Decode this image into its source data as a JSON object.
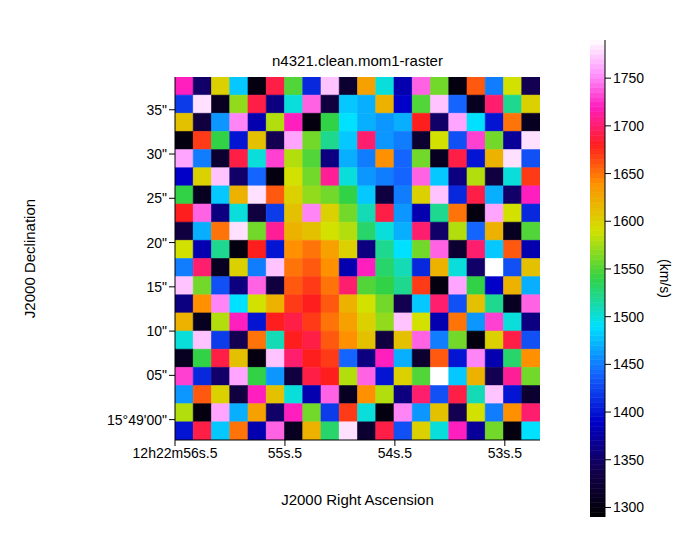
{
  "chart_data": {
    "type": "heatmap",
    "title": "n4321.clean.mom1-raster",
    "x_label": "J2000 Right Ascension",
    "y_label": "J2000 Declination",
    "xlim": [
      56.5,
      53.18
    ],
    "xticks": [
      {
        "value": 56.5,
        "label": "12h22m56s.5"
      },
      {
        "value": 55.5,
        "label": "55s.5"
      },
      {
        "value": 54.5,
        "label": "54s.5"
      },
      {
        "value": 53.5,
        "label": "53s.5"
      }
    ],
    "ylim": [
      -2.3,
      38.7
    ],
    "yticks": [
      {
        "value": 0,
        "label": "15°49'00\""
      },
      {
        "value": 5,
        "label": "05\""
      },
      {
        "value": 10,
        "label": "10\""
      },
      {
        "value": 15,
        "label": "15\""
      },
      {
        "value": 20,
        "label": "20\""
      },
      {
        "value": 25,
        "label": "25\""
      },
      {
        "value": 30,
        "label": "30\""
      },
      {
        "value": 35,
        "label": "35\""
      }
    ],
    "grid": false,
    "cells": [
      [
        1720,
        1350,
        1600,
        1480,
        1300,
        1690,
        1550,
        1410,
        1770,
        1320,
        1630,
        1500,
        1380,
        1740,
        1560,
        1300,
        1660,
        1450,
        1590,
        1340
      ],
      [
        1420,
        1780,
        1310,
        1570,
        1690,
        1360,
        1500,
        1740,
        1330,
        1480,
        1470,
        1620,
        1390,
        1550,
        1770,
        1440,
        1310,
        1700,
        1520,
        1600
      ],
      [
        1610,
        1330,
        1460,
        1750,
        1380,
        1580,
        1720,
        1300,
        1540,
        1490,
        1470,
        1460,
        1470,
        1680,
        1350,
        1760,
        1490,
        1400,
        1650,
        1310
      ],
      [
        1300,
        1670,
        1540,
        1400,
        1610,
        1340,
        1760,
        1560,
        1520,
        1480,
        1700,
        1460,
        1450,
        1320,
        1590,
        1430,
        1730,
        1560,
        1370,
        1780
      ],
      [
        1760,
        1450,
        1320,
        1690,
        1500,
        1730,
        1580,
        1550,
        1360,
        1470,
        1450,
        1640,
        1440,
        1560,
        1310,
        1690,
        1400,
        1620,
        1780,
        1430
      ],
      [
        1390,
        1600,
        1770,
        1350,
        1440,
        1300,
        1590,
        1560,
        1710,
        1500,
        1460,
        1450,
        1440,
        1740,
        1480,
        1360,
        1580,
        1330,
        1500,
        1670
      ],
      [
        1540,
        1310,
        1480,
        1620,
        1780,
        1660,
        1600,
        1570,
        1560,
        1540,
        1480,
        1330,
        1450,
        1600,
        1770,
        1410,
        1690,
        1470,
        1350,
        1720
      ],
      [
        1680,
        1740,
        1360,
        1500,
        1330,
        1420,
        1610,
        1750,
        1600,
        1560,
        1510,
        1690,
        1460,
        1380,
        1520,
        1650,
        1300,
        1760,
        1590,
        1410
      ],
      [
        1330,
        1470,
        1650,
        1780,
        1560,
        1710,
        1620,
        1610,
        1590,
        1580,
        1530,
        1500,
        1470,
        1700,
        1350,
        1580,
        1440,
        1620,
        1310,
        1550
      ],
      [
        1590,
        1380,
        1520,
        1300,
        1680,
        1400,
        1640,
        1650,
        1630,
        1600,
        1360,
        1520,
        1490,
        1560,
        1740,
        1320,
        1700,
        1480,
        1660,
        1380
      ],
      [
        1450,
        1700,
        1310,
        1600,
        1450,
        1770,
        1650,
        1660,
        1640,
        1380,
        1720,
        1530,
        1510,
        1410,
        1620,
        1500,
        1350,
        1790,
        1430,
        1610
      ],
      [
        1770,
        1560,
        1430,
        1360,
        1740,
        1330,
        1660,
        1670,
        1650,
        1700,
        1550,
        1540,
        1520,
        1670,
        1300,
        1760,
        1540,
        1390,
        1620,
        1470
      ],
      [
        1360,
        1640,
        1750,
        1490,
        1590,
        1620,
        1670,
        1680,
        1660,
        1620,
        1590,
        1560,
        1340,
        1480,
        1700,
        1430,
        1610,
        1520,
        1310,
        1740
      ],
      [
        1620,
        1310,
        1580,
        1720,
        1400,
        1680,
        1690,
        1670,
        1650,
        1630,
        1600,
        1570,
        1770,
        1590,
        1380,
        1650,
        1460,
        1730,
        1500,
        1360
      ],
      [
        1500,
        1770,
        1420,
        1340,
        1650,
        1510,
        1680,
        1690,
        1660,
        1640,
        1610,
        1330,
        1610,
        1740,
        1450,
        1560,
        1300,
        1600,
        1690,
        1430
      ],
      [
        1310,
        1540,
        1690,
        1610,
        1300,
        1770,
        1700,
        1680,
        1670,
        1440,
        1360,
        1720,
        1470,
        1320,
        1660,
        1400,
        1750,
        1380,
        1530,
        1640
      ],
      [
        1730,
        1410,
        1350,
        1760,
        1540,
        1460,
        1330,
        1690,
        1680,
        1580,
        1740,
        1400,
        1600,
        1550,
        1790,
        1480,
        1620,
        1340,
        1710,
        1560
      ],
      [
        1460,
        1660,
        1600,
        1330,
        1720,
        1610,
        1500,
        1380,
        1740,
        1310,
        1640,
        1580,
        1360,
        1700,
        1430,
        1690,
        1510,
        1770,
        1400,
        1320
      ],
      [
        1580,
        1300,
        1760,
        1470,
        1630,
        1350,
        1720,
        1560,
        1420,
        1670,
        1500,
        1300,
        1750,
        1460,
        1610,
        1340,
        1590,
        1450,
        1640,
        1700
      ],
      [
        1400,
        1690,
        1480,
        1650,
        1380,
        1740,
        1310,
        1620,
        1530,
        1780,
        1320,
        1690,
        1430,
        1600,
        1500,
        1720,
        1370,
        1560,
        1300,
        1490
      ]
    ],
    "colorbar_range": [
      1290,
      1790
    ],
    "colorbar_ticks": [
      1300,
      1350,
      1400,
      1450,
      1500,
      1550,
      1600,
      1650,
      1700,
      1750
    ],
    "colorbar_label": "(km/s)"
  }
}
